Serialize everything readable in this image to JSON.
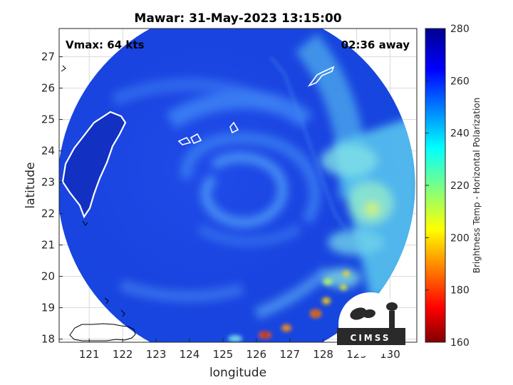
{
  "title": "Mawar: 31-May-2023 13:15:00",
  "vmax_label": "Vmax: 64 kts",
  "time_away": "02:36 away",
  "logo_text": "CIMSS",
  "chart_data": {
    "type": "heatmap",
    "xlabel": "longitude",
    "ylabel": "latitude",
    "xlim": [
      120.1,
      130.8
    ],
    "ylim": [
      17.9,
      27.9
    ],
    "xticks": [
      121,
      122,
      123,
      124,
      125,
      126,
      127,
      128,
      129,
      130
    ],
    "yticks": [
      18,
      19,
      20,
      21,
      22,
      23,
      24,
      25,
      26,
      27
    ],
    "grid": true,
    "colorbar": {
      "label": "Brightness Temp - Horizontal Polarization",
      "range": [
        160,
        280
      ],
      "ticks": [
        160,
        180,
        200,
        220,
        240,
        260,
        280
      ],
      "colormap": "jet"
    },
    "swath": {
      "center_lon": 125.4,
      "center_lat": 22.9,
      "radius_deg": 5.35
    },
    "storm_center": {
      "lon": 124.8,
      "lat": 23.1
    }
  }
}
